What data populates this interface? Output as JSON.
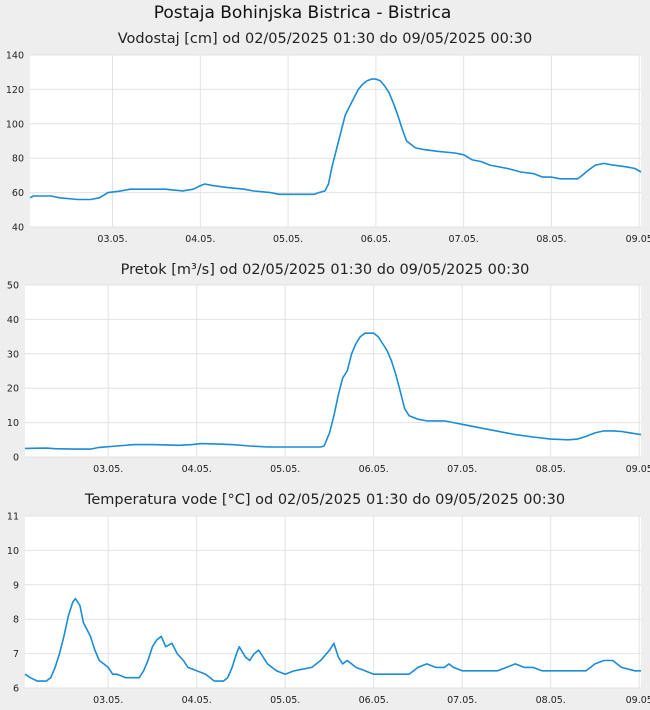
{
  "title": "Postaja Bohinjska Bistrica - Bistrica",
  "chart_data": [
    {
      "type": "line",
      "title": "Vodostaj [cm] od 02/05/2025 01:30 do 09/05/2025 00:30",
      "xlabel": "",
      "ylabel": "",
      "ylim": [
        40,
        140
      ],
      "yticks": [
        "40",
        "60",
        "80",
        "100",
        "120",
        "140"
      ],
      "xlim": [
        2.06,
        9.02
      ],
      "xticks": [
        {
          "x": 3,
          "label": "03.05."
        },
        {
          "x": 4,
          "label": "04.05."
        },
        {
          "x": 5,
          "label": "05.05."
        },
        {
          "x": 6,
          "label": "06.05."
        },
        {
          "x": 7,
          "label": "07.05."
        },
        {
          "x": 8,
          "label": "08.05."
        },
        {
          "x": 9,
          "label": "09.05"
        }
      ],
      "grid": true,
      "color": "#1a8cd8",
      "series": [
        {
          "points": [
            [
              2.06,
              57
            ],
            [
              2.1,
              58
            ],
            [
              2.3,
              58
            ],
            [
              2.4,
              57
            ],
            [
              2.6,
              56
            ],
            [
              2.75,
              56
            ],
            [
              2.85,
              57
            ],
            [
              2.95,
              60
            ],
            [
              3.1,
              61
            ],
            [
              3.2,
              62
            ],
            [
              3.4,
              62
            ],
            [
              3.6,
              62
            ],
            [
              3.8,
              61
            ],
            [
              3.92,
              62
            ],
            [
              4.0,
              64
            ],
            [
              4.05,
              65
            ],
            [
              4.15,
              64
            ],
            [
              4.3,
              63
            ],
            [
              4.5,
              62
            ],
            [
              4.6,
              61
            ],
            [
              4.8,
              60
            ],
            [
              4.9,
              59
            ],
            [
              5.1,
              59
            ],
            [
              5.2,
              59
            ],
            [
              5.3,
              59
            ],
            [
              5.35,
              60
            ],
            [
              5.42,
              61
            ],
            [
              5.46,
              65
            ],
            [
              5.5,
              75
            ],
            [
              5.55,
              85
            ],
            [
              5.6,
              95
            ],
            [
              5.65,
              105
            ],
            [
              5.7,
              110
            ],
            [
              5.75,
              115
            ],
            [
              5.8,
              120
            ],
            [
              5.85,
              123
            ],
            [
              5.9,
              125
            ],
            [
              5.95,
              126
            ],
            [
              6.0,
              126
            ],
            [
              6.05,
              125
            ],
            [
              6.1,
              122
            ],
            [
              6.15,
              118
            ],
            [
              6.2,
              112
            ],
            [
              6.25,
              105
            ],
            [
              6.3,
              97
            ],
            [
              6.35,
              90
            ],
            [
              6.45,
              86
            ],
            [
              6.55,
              85
            ],
            [
              6.7,
              84
            ],
            [
              6.9,
              83
            ],
            [
              7.0,
              82
            ],
            [
              7.1,
              79
            ],
            [
              7.2,
              78
            ],
            [
              7.3,
              76
            ],
            [
              7.5,
              74
            ],
            [
              7.65,
              72
            ],
            [
              7.8,
              71
            ],
            [
              7.9,
              69
            ],
            [
              8.0,
              69
            ],
            [
              8.1,
              68
            ],
            [
              8.2,
              68
            ],
            [
              8.3,
              68
            ],
            [
              8.35,
              70
            ],
            [
              8.42,
              73
            ],
            [
              8.5,
              76
            ],
            [
              8.6,
              77
            ],
            [
              8.7,
              76
            ],
            [
              8.85,
              75
            ],
            [
              8.95,
              74
            ],
            [
              9.02,
              72
            ]
          ]
        }
      ]
    },
    {
      "type": "line",
      "title": "Pretok [m³/s] od 02/05/2025 01:30 do 09/05/2025 00:30",
      "xlabel": "",
      "ylabel": "",
      "ylim": [
        0,
        50
      ],
      "yticks": [
        "0",
        "10",
        "20",
        "30",
        "40",
        "50"
      ],
      "xlim": [
        2.06,
        9.02
      ],
      "xticks": [
        {
          "x": 3,
          "label": "03.05."
        },
        {
          "x": 4,
          "label": "04.05."
        },
        {
          "x": 5,
          "label": "05.05."
        },
        {
          "x": 6,
          "label": "06.05."
        },
        {
          "x": 7,
          "label": "07.05."
        },
        {
          "x": 8,
          "label": "08.05."
        },
        {
          "x": 9,
          "label": "09.05"
        }
      ],
      "grid": true,
      "color": "#1a8cd8",
      "series": [
        {
          "points": [
            [
              2.06,
              2.5
            ],
            [
              2.3,
              2.6
            ],
            [
              2.4,
              2.4
            ],
            [
              2.6,
              2.3
            ],
            [
              2.8,
              2.3
            ],
            [
              2.9,
              2.8
            ],
            [
              3.1,
              3.2
            ],
            [
              3.3,
              3.6
            ],
            [
              3.5,
              3.6
            ],
            [
              3.8,
              3.4
            ],
            [
              3.95,
              3.6
            ],
            [
              4.05,
              3.9
            ],
            [
              4.2,
              3.8
            ],
            [
              4.4,
              3.6
            ],
            [
              4.6,
              3.2
            ],
            [
              4.8,
              2.9
            ],
            [
              5.0,
              2.9
            ],
            [
              5.2,
              2.9
            ],
            [
              5.4,
              2.9
            ],
            [
              5.44,
              3.2
            ],
            [
              5.5,
              7
            ],
            [
              5.55,
              12
            ],
            [
              5.6,
              18
            ],
            [
              5.65,
              23
            ],
            [
              5.7,
              25
            ],
            [
              5.75,
              30
            ],
            [
              5.8,
              33
            ],
            [
              5.85,
              35
            ],
            [
              5.9,
              36
            ],
            [
              5.95,
              36
            ],
            [
              6.0,
              36
            ],
            [
              6.05,
              35
            ],
            [
              6.1,
              33
            ],
            [
              6.15,
              31
            ],
            [
              6.2,
              28
            ],
            [
              6.25,
              24
            ],
            [
              6.3,
              19
            ],
            [
              6.35,
              14
            ],
            [
              6.4,
              12
            ],
            [
              6.5,
              11
            ],
            [
              6.6,
              10.5
            ],
            [
              6.8,
              10.5
            ],
            [
              6.9,
              10
            ],
            [
              7.0,
              9.5
            ],
            [
              7.2,
              8.5
            ],
            [
              7.4,
              7.5
            ],
            [
              7.6,
              6.5
            ],
            [
              7.8,
              5.8
            ],
            [
              8.0,
              5.2
            ],
            [
              8.2,
              5
            ],
            [
              8.3,
              5.2
            ],
            [
              8.4,
              6
            ],
            [
              8.5,
              7
            ],
            [
              8.6,
              7.6
            ],
            [
              8.7,
              7.6
            ],
            [
              8.8,
              7.4
            ],
            [
              8.9,
              7
            ],
            [
              9.02,
              6.5
            ]
          ]
        }
      ]
    },
    {
      "type": "line",
      "title": "Temperatura vode [°C] od 02/05/2025 01:30 do 09/05/2025 00:30",
      "xlabel": "",
      "ylabel": "",
      "ylim": [
        6,
        11
      ],
      "yticks": [
        "6",
        "7",
        "8",
        "9",
        "10",
        "11"
      ],
      "xlim": [
        2.06,
        9.02
      ],
      "xticks": [
        {
          "x": 3,
          "label": "03.05."
        },
        {
          "x": 4,
          "label": "04.05."
        },
        {
          "x": 5,
          "label": "05.05."
        },
        {
          "x": 6,
          "label": "06.05."
        },
        {
          "x": 7,
          "label": "07.05."
        },
        {
          "x": 8,
          "label": "08.05."
        },
        {
          "x": 9,
          "label": "09.05"
        }
      ],
      "grid": true,
      "color": "#1a8cd8",
      "series": [
        {
          "points": [
            [
              2.06,
              6.4
            ],
            [
              2.12,
              6.3
            ],
            [
              2.2,
              6.2
            ],
            [
              2.3,
              6.2
            ],
            [
              2.35,
              6.3
            ],
            [
              2.4,
              6.6
            ],
            [
              2.45,
              7.0
            ],
            [
              2.5,
              7.5
            ],
            [
              2.55,
              8.1
            ],
            [
              2.6,
              8.5
            ],
            [
              2.63,
              8.6
            ],
            [
              2.68,
              8.4
            ],
            [
              2.72,
              7.9
            ],
            [
              2.8,
              7.5
            ],
            [
              2.85,
              7.1
            ],
            [
              2.9,
              6.8
            ],
            [
              2.95,
              6.7
            ],
            [
              3.0,
              6.6
            ],
            [
              3.05,
              6.4
            ],
            [
              3.1,
              6.4
            ],
            [
              3.2,
              6.3
            ],
            [
              3.35,
              6.3
            ],
            [
              3.4,
              6.5
            ],
            [
              3.45,
              6.8
            ],
            [
              3.5,
              7.2
            ],
            [
              3.55,
              7.4
            ],
            [
              3.6,
              7.5
            ],
            [
              3.65,
              7.2
            ],
            [
              3.72,
              7.3
            ],
            [
              3.78,
              7.0
            ],
            [
              3.85,
              6.8
            ],
            [
              3.9,
              6.6
            ],
            [
              4.0,
              6.5
            ],
            [
              4.1,
              6.4
            ],
            [
              4.2,
              6.2
            ],
            [
              4.3,
              6.2
            ],
            [
              4.35,
              6.3
            ],
            [
              4.4,
              6.6
            ],
            [
              4.45,
              7.0
            ],
            [
              4.48,
              7.2
            ],
            [
              4.55,
              6.9
            ],
            [
              4.6,
              6.8
            ],
            [
              4.65,
              7.0
            ],
            [
              4.7,
              7.1
            ],
            [
              4.75,
              6.9
            ],
            [
              4.8,
              6.7
            ],
            [
              4.9,
              6.5
            ],
            [
              5.0,
              6.4
            ],
            [
              5.1,
              6.5
            ],
            [
              5.3,
              6.6
            ],
            [
              5.4,
              6.8
            ],
            [
              5.5,
              7.1
            ],
            [
              5.55,
              7.3
            ],
            [
              5.6,
              6.9
            ],
            [
              5.65,
              6.7
            ],
            [
              5.7,
              6.8
            ],
            [
              5.75,
              6.7
            ],
            [
              5.8,
              6.6
            ],
            [
              5.9,
              6.5
            ],
            [
              6.0,
              6.4
            ],
            [
              6.2,
              6.4
            ],
            [
              6.4,
              6.4
            ],
            [
              6.5,
              6.6
            ],
            [
              6.6,
              6.7
            ],
            [
              6.7,
              6.6
            ],
            [
              6.8,
              6.6
            ],
            [
              6.85,
              6.7
            ],
            [
              6.9,
              6.6
            ],
            [
              7.0,
              6.5
            ],
            [
              7.2,
              6.5
            ],
            [
              7.4,
              6.5
            ],
            [
              7.5,
              6.6
            ],
            [
              7.6,
              6.7
            ],
            [
              7.7,
              6.6
            ],
            [
              7.8,
              6.6
            ],
            [
              7.9,
              6.5
            ],
            [
              8.0,
              6.5
            ],
            [
              8.2,
              6.5
            ],
            [
              8.4,
              6.5
            ],
            [
              8.5,
              6.7
            ],
            [
              8.6,
              6.8
            ],
            [
              8.7,
              6.8
            ],
            [
              8.8,
              6.6
            ],
            [
              8.95,
              6.5
            ],
            [
              9.02,
              6.5
            ]
          ]
        }
      ]
    }
  ]
}
